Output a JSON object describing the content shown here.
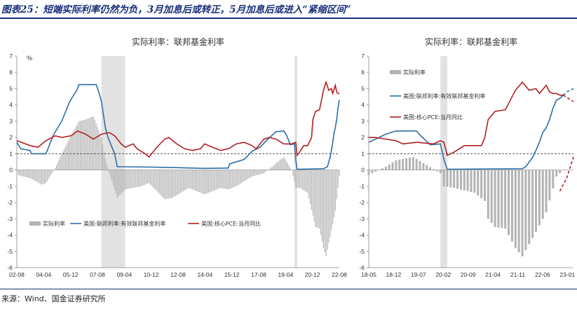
{
  "header": {
    "title": "图表25：短端实际利率仍然为负，3月加息后或转正，5月加息后或进入“紧缩区间”"
  },
  "source": "来源：Wind、国金证券研究所",
  "colors": {
    "real_rate": "#b3b3b3",
    "fed_funds": "#2e6ea6",
    "core_pce": "#b21f24",
    "shade": "#e2e2e2",
    "refline": "#555555"
  },
  "chart_data": [
    {
      "type": "bar",
      "title": "实际利率：联邦基金利率",
      "unit_label": "%",
      "ylim": [
        -6,
        7
      ],
      "y_ticks": [
        "7",
        "6",
        "5",
        "4",
        "3",
        "2",
        "1",
        "0",
        "-1",
        "-2",
        "-3",
        "-4",
        "-5",
        "-6"
      ],
      "x_ticks": [
        "02-08",
        "04-04",
        "05-12",
        "07-08",
        "09-04",
        "10-12",
        "12-08",
        "14-04",
        "15-12",
        "17-08",
        "19-04",
        "20-12",
        "22-08"
      ],
      "x_range_months": [
        "2002-08",
        "2022-12"
      ],
      "reference_line": 1,
      "shaded_periods": [
        [
          "2007-12",
          "2009-06"
        ],
        [
          "2020-02",
          "2020-04"
        ]
      ],
      "legend": [
        "实际利率",
        "美国:联邦利率:有效联邦基金利率",
        "美国:核心PCE:当月同比"
      ],
      "series": [
        {
          "name": "美国:联邦利率:有效联邦基金利率",
          "kind": "line",
          "points": [
            [
              "2002-08",
              1.7
            ],
            [
              "2002-11",
              1.3
            ],
            [
              "2003-06",
              1.2
            ],
            [
              "2003-07",
              1.0
            ],
            [
              "2004-06",
              1.0
            ],
            [
              "2004-09",
              1.6
            ],
            [
              "2004-12",
              2.2
            ],
            [
              "2005-06",
              3.0
            ],
            [
              "2005-12",
              4.2
            ],
            [
              "2006-06",
              5.0
            ],
            [
              "2006-07",
              5.25
            ],
            [
              "2007-08",
              5.25
            ],
            [
              "2007-10",
              4.8
            ],
            [
              "2007-12",
              4.2
            ],
            [
              "2008-03",
              2.6
            ],
            [
              "2008-05",
              2.0
            ],
            [
              "2008-10",
              1.0
            ],
            [
              "2008-12",
              0.2
            ],
            [
              "2009-06",
              0.2
            ],
            [
              "2010-12",
              0.18
            ],
            [
              "2012-06",
              0.15
            ],
            [
              "2014-06",
              0.1
            ],
            [
              "2015-12",
              0.12
            ],
            [
              "2016-01",
              0.38
            ],
            [
              "2016-12",
              0.65
            ],
            [
              "2017-06",
              1.15
            ],
            [
              "2017-12",
              1.4
            ],
            [
              "2018-06",
              1.9
            ],
            [
              "2018-12",
              2.35
            ],
            [
              "2019-06",
              2.4
            ],
            [
              "2019-08",
              2.15
            ],
            [
              "2019-11",
              1.55
            ],
            [
              "2020-02",
              1.6
            ],
            [
              "2020-03",
              0.65
            ],
            [
              "2020-04",
              0.05
            ],
            [
              "2021-12",
              0.08
            ],
            [
              "2022-03",
              0.2
            ],
            [
              "2022-05",
              0.77
            ],
            [
              "2022-06",
              1.2
            ],
            [
              "2022-07",
              1.7
            ],
            [
              "2022-08",
              2.3
            ],
            [
              "2022-09",
              2.6
            ],
            [
              "2022-10",
              3.1
            ],
            [
              "2022-11",
              3.8
            ],
            [
              "2022-12",
              4.3
            ]
          ]
        },
        {
          "name": "美国:核心PCE:当月同比",
          "kind": "line",
          "points": [
            [
              "2002-08",
              1.8
            ],
            [
              "2003-06",
              1.5
            ],
            [
              "2003-12",
              1.4
            ],
            [
              "2004-06",
              1.8
            ],
            [
              "2005-01",
              2.1
            ],
            [
              "2005-06",
              2.0
            ],
            [
              "2006-01",
              2.1
            ],
            [
              "2006-06",
              2.4
            ],
            [
              "2006-12",
              2.2
            ],
            [
              "2007-06",
              1.9
            ],
            [
              "2007-12",
              2.2
            ],
            [
              "2008-06",
              2.3
            ],
            [
              "2008-10",
              2.1
            ],
            [
              "2009-03",
              1.6
            ],
            [
              "2009-06",
              1.4
            ],
            [
              "2009-12",
              1.6
            ],
            [
              "2010-03",
              1.3
            ],
            [
              "2010-09",
              1.0
            ],
            [
              "2010-12",
              0.8
            ],
            [
              "2011-06",
              1.4
            ],
            [
              "2011-12",
              1.9
            ],
            [
              "2012-03",
              2.0
            ],
            [
              "2012-09",
              1.6
            ],
            [
              "2013-03",
              1.3
            ],
            [
              "2013-09",
              1.2
            ],
            [
              "2014-03",
              1.3
            ],
            [
              "2014-06",
              1.6
            ],
            [
              "2014-12",
              1.4
            ],
            [
              "2015-06",
              1.2
            ],
            [
              "2015-12",
              1.3
            ],
            [
              "2016-06",
              1.6
            ],
            [
              "2016-12",
              1.7
            ],
            [
              "2017-06",
              1.5
            ],
            [
              "2017-09",
              1.3
            ],
            [
              "2018-03",
              1.9
            ],
            [
              "2018-07",
              2.0
            ],
            [
              "2018-12",
              1.9
            ],
            [
              "2019-06",
              1.6
            ],
            [
              "2019-12",
              1.6
            ],
            [
              "2020-03",
              1.7
            ],
            [
              "2020-04",
              0.9
            ],
            [
              "2020-06",
              1.1
            ],
            [
              "2020-09",
              1.5
            ],
            [
              "2020-12",
              1.5
            ],
            [
              "2021-03",
              2.0
            ],
            [
              "2021-04",
              3.1
            ],
            [
              "2021-06",
              3.6
            ],
            [
              "2021-09",
              3.7
            ],
            [
              "2021-12",
              4.9
            ],
            [
              "2022-02",
              5.4
            ],
            [
              "2022-04",
              4.9
            ],
            [
              "2022-06",
              5.0
            ],
            [
              "2022-07",
              4.7
            ],
            [
              "2022-09",
              5.2
            ],
            [
              "2022-10",
              4.8
            ],
            [
              "2022-11",
              4.7
            ],
            [
              "2022-12",
              4.7
            ]
          ]
        },
        {
          "name": "实际利率",
          "kind": "bar",
          "points": [
            [
              "2002-08",
              -0.3
            ],
            [
              "2003-06",
              -0.5
            ],
            [
              "2004-03",
              -0.9
            ],
            [
              "2004-06",
              -0.8
            ],
            [
              "2005-01",
              0.1
            ],
            [
              "2005-06",
              1.0
            ],
            [
              "2006-01",
              2.1
            ],
            [
              "2006-07",
              3.0
            ],
            [
              "2006-12",
              3.1
            ],
            [
              "2007-06",
              3.3
            ],
            [
              "2007-12",
              2.0
            ],
            [
              "2008-03",
              0.7
            ],
            [
              "2008-06",
              -0.2
            ],
            [
              "2008-12",
              -1.7
            ],
            [
              "2009-06",
              -1.2
            ],
            [
              "2010-06",
              -1.0
            ],
            [
              "2010-12",
              -0.8
            ],
            [
              "2011-12",
              -1.8
            ],
            [
              "2012-06",
              -1.7
            ],
            [
              "2013-06",
              -1.1
            ],
            [
              "2014-06",
              -1.5
            ],
            [
              "2015-06",
              -1.1
            ],
            [
              "2015-12",
              -1.2
            ],
            [
              "2016-06",
              -1.0
            ],
            [
              "2017-06",
              -0.4
            ],
            [
              "2018-03",
              -0.2
            ],
            [
              "2018-12",
              0.4
            ],
            [
              "2019-06",
              0.8
            ],
            [
              "2019-12",
              0.0
            ],
            [
              "2020-03",
              -1.1
            ],
            [
              "2020-06",
              -1.1
            ],
            [
              "2020-12",
              -1.4
            ],
            [
              "2021-06",
              -3.5
            ],
            [
              "2021-09",
              -3.6
            ],
            [
              "2021-12",
              -4.8
            ],
            [
              "2022-02",
              -5.3
            ],
            [
              "2022-06",
              -3.7
            ],
            [
              "2022-09",
              -2.5
            ],
            [
              "2022-12",
              -0.4
            ]
          ]
        }
      ]
    },
    {
      "type": "bar",
      "title": "实际利率：联邦基金利率",
      "ylim": [
        -6,
        7
      ],
      "y_ticks": [
        "7",
        "6",
        "5",
        "4",
        "3",
        "2",
        "1",
        "0",
        "-1",
        "-2",
        "-3",
        "-4",
        "-5",
        "-6"
      ],
      "x_ticks": [
        "18-05",
        "18-12",
        "19-07",
        "20-02",
        "20-09",
        "21-04",
        "21-11",
        "22-06",
        "23-01"
      ],
      "x_range_months": [
        "2018-05",
        "2023-05"
      ],
      "reference_line": 1,
      "shaded_periods": [
        [
          "2020-02",
          "2020-04"
        ]
      ],
      "legend": [
        "实际利率",
        "美国:联邦利率:有效联邦基金利率",
        "美国:核心PCE:当月同比"
      ],
      "series": [
        {
          "name": "美国:联邦利率:有效联邦基金利率",
          "kind": "line",
          "points": [
            [
              "2018-05",
              1.7
            ],
            [
              "2018-07",
              1.9
            ],
            [
              "2018-10",
              2.2
            ],
            [
              "2019-01",
              2.4
            ],
            [
              "2019-07",
              2.4
            ],
            [
              "2019-08",
              2.15
            ],
            [
              "2019-11",
              1.55
            ],
            [
              "2020-02",
              1.6
            ],
            [
              "2020-03",
              0.65
            ],
            [
              "2020-04",
              0.05
            ],
            [
              "2022-02",
              0.08
            ],
            [
              "2022-03",
              0.2
            ],
            [
              "2022-05",
              0.77
            ],
            [
              "2022-06",
              1.2
            ],
            [
              "2022-07",
              1.7
            ],
            [
              "2022-08",
              2.3
            ],
            [
              "2022-09",
              2.6
            ],
            [
              "2022-10",
              3.1
            ],
            [
              "2022-11",
              3.8
            ],
            [
              "2022-12",
              4.3
            ],
            [
              "2023-01",
              4.4
            ],
            [
              "2023-02",
              4.6
            ]
          ]
        },
        {
          "name": "美国:联邦利率:有效联邦基金利率（预测）",
          "kind": "dashed",
          "points": [
            [
              "2023-02",
              4.6
            ],
            [
              "2023-03",
              4.8
            ],
            [
              "2023-05",
              5.0
            ]
          ]
        },
        {
          "name": "美国:核心PCE:当月同比",
          "kind": "line",
          "points": [
            [
              "2018-05",
              2.0
            ],
            [
              "2018-07",
              2.0
            ],
            [
              "2018-10",
              1.9
            ],
            [
              "2019-01",
              1.8
            ],
            [
              "2019-03",
              1.6
            ],
            [
              "2019-07",
              1.7
            ],
            [
              "2019-12",
              1.6
            ],
            [
              "2020-02",
              1.8
            ],
            [
              "2020-03",
              1.7
            ],
            [
              "2020-04",
              0.9
            ],
            [
              "2020-06",
              1.1
            ],
            [
              "2020-09",
              1.5
            ],
            [
              "2020-12",
              1.5
            ],
            [
              "2021-02",
              1.5
            ],
            [
              "2021-03",
              2.0
            ],
            [
              "2021-04",
              3.1
            ],
            [
              "2021-06",
              3.6
            ],
            [
              "2021-09",
              3.7
            ],
            [
              "2021-12",
              4.9
            ],
            [
              "2022-02",
              5.4
            ],
            [
              "2022-04",
              4.9
            ],
            [
              "2022-06",
              5.0
            ],
            [
              "2022-07",
              4.7
            ],
            [
              "2022-09",
              5.2
            ],
            [
              "2022-10",
              4.8
            ],
            [
              "2022-11",
              4.7
            ],
            [
              "2022-12",
              4.7
            ],
            [
              "2023-01",
              4.6
            ],
            [
              "2023-02",
              4.6
            ]
          ]
        },
        {
          "name": "美国:核心PCE:当月同比（预测）",
          "kind": "dashed",
          "points": [
            [
              "2023-02",
              4.6
            ],
            [
              "2023-05",
              4.2
            ]
          ]
        },
        {
          "name": "实际利率",
          "kind": "bar",
          "points": [
            [
              "2018-05",
              -0.3
            ],
            [
              "2018-10",
              0.2
            ],
            [
              "2019-01",
              0.6
            ],
            [
              "2019-06",
              0.8
            ],
            [
              "2019-10",
              0.3
            ],
            [
              "2020-02",
              -0.2
            ],
            [
              "2020-03",
              -1.0
            ],
            [
              "2020-06",
              -1.1
            ],
            [
              "2020-12",
              -1.4
            ],
            [
              "2021-03",
              -1.9
            ],
            [
              "2021-04",
              -3.0
            ],
            [
              "2021-06",
              -3.5
            ],
            [
              "2021-09",
              -3.6
            ],
            [
              "2021-12",
              -4.8
            ],
            [
              "2022-02",
              -5.3
            ],
            [
              "2022-06",
              -3.8
            ],
            [
              "2022-09",
              -2.6
            ],
            [
              "2022-12",
              -0.4
            ],
            [
              "2023-01",
              -0.2
            ]
          ]
        },
        {
          "name": "实际利率（预测）",
          "kind": "dashed",
          "points": [
            [
              "2023-01",
              -1.3
            ],
            [
              "2023-03",
              -0.5
            ],
            [
              "2023-05",
              0.8
            ]
          ]
        }
      ]
    }
  ]
}
